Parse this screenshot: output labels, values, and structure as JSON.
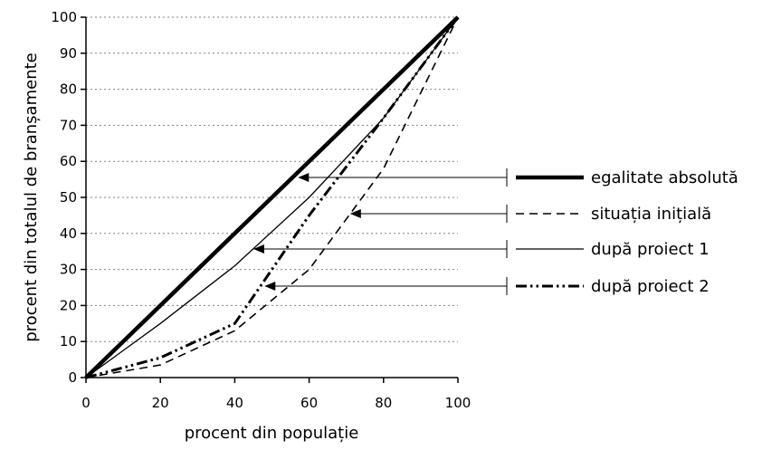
{
  "chart_data": {
    "type": "line",
    "xlabel": "procent din populație",
    "ylabel": "procent din totalul de branșamente",
    "xlim": [
      0,
      100
    ],
    "ylim": [
      0,
      100
    ],
    "xticks": [
      "0",
      "20",
      "40",
      "60",
      "80",
      "100"
    ],
    "yticks": [
      "0",
      "10",
      "20",
      "30",
      "40",
      "50",
      "60",
      "70",
      "80",
      "90",
      "100"
    ],
    "grid": "horizontal dotted",
    "legend_placement": "right",
    "series": [
      {
        "name": "egalitate absolută",
        "style": "thick-solid",
        "points": [
          [
            0,
            0
          ],
          [
            100,
            100
          ]
        ],
        "pointer": [
          57,
          56
        ]
      },
      {
        "name": "situația inițială",
        "style": "dashed",
        "points": [
          [
            0,
            0
          ],
          [
            20,
            3.5
          ],
          [
            40,
            13
          ],
          [
            60,
            30
          ],
          [
            80,
            58
          ],
          [
            100,
            100
          ]
        ],
        "pointer": [
          71,
          45
        ]
      },
      {
        "name": "după proiect 1",
        "style": "thin-solid",
        "points": [
          [
            0,
            0
          ],
          [
            20,
            15
          ],
          [
            40,
            31
          ],
          [
            60,
            50
          ],
          [
            80,
            72
          ],
          [
            100,
            100
          ]
        ],
        "pointer": [
          45,
          35.5
        ]
      },
      {
        "name": "după proiect 2",
        "style": "dash-dot-dot",
        "points": [
          [
            0,
            0
          ],
          [
            20,
            5.5
          ],
          [
            40,
            15
          ],
          [
            50,
            30
          ],
          [
            60,
            45
          ],
          [
            80,
            72
          ],
          [
            100,
            100
          ]
        ],
        "pointer": [
          48,
          25
        ]
      }
    ]
  }
}
